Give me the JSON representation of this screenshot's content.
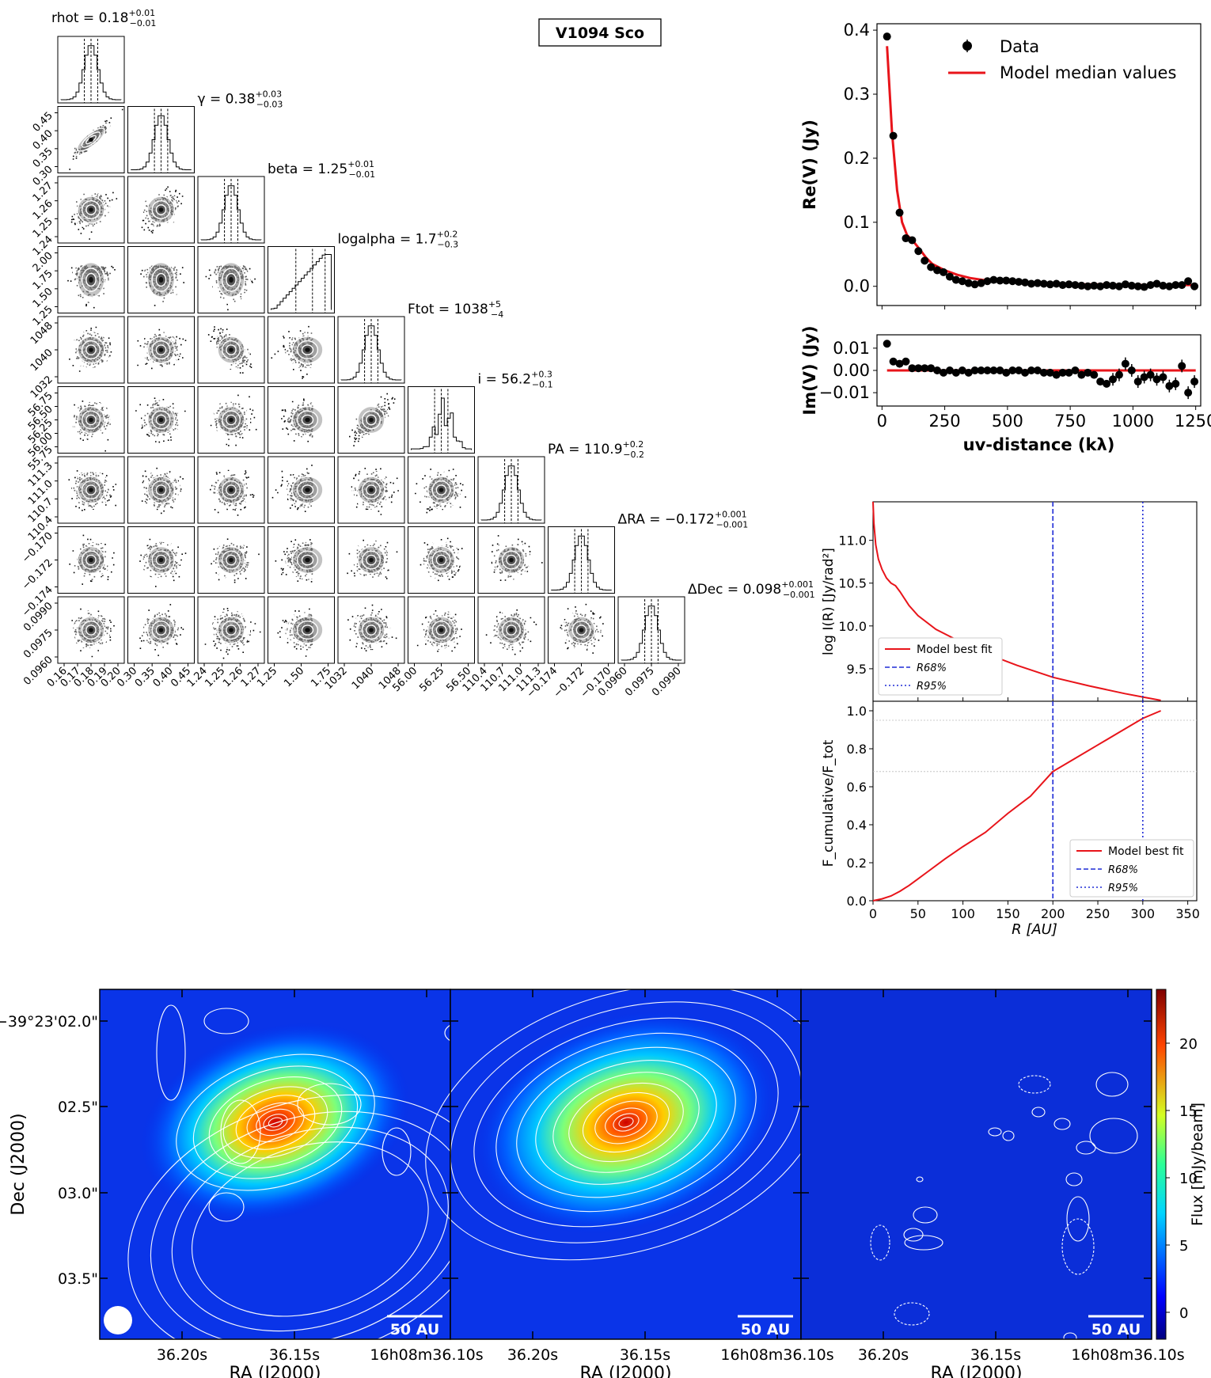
{
  "figure": {
    "object_name": "V1094  Sco",
    "colors": {
      "model": "#e8141a",
      "r68": "#1f2bd6",
      "r95": "#1f2bd6",
      "data": "#000000"
    }
  },
  "corner": {
    "params": [
      {
        "key": "rhot",
        "title": "rhot = 0.18",
        "sup": "+0.01",
        "sub": "−0.01",
        "ticks": [
          "0.16",
          "0.17",
          "0.18",
          "0.19",
          "0.20"
        ]
      },
      {
        "key": "gamma",
        "title": "γ = 0.38",
        "sup": "+0.03",
        "sub": "−0.03",
        "ticks": [
          "0.30",
          "0.35",
          "0.40",
          "0.45"
        ]
      },
      {
        "key": "beta",
        "title": "beta = 1.25",
        "sup": "+0.01",
        "sub": "−0.01",
        "ticks": [
          "1.24",
          "1.25",
          "1.26",
          "1.27"
        ]
      },
      {
        "key": "logalpha",
        "title": "logalpha = 1.7",
        "sup": "+0.2",
        "sub": "−0.3",
        "ticks": [
          "1.25",
          "1.50",
          "1.75",
          "2.00"
        ],
        "x_ticks": [
          "1.25",
          "1.50",
          "1.75"
        ]
      },
      {
        "key": "ftot",
        "title": "F_tot = 1038",
        "sup": "+5",
        "sub": "−4",
        "ticks": [
          "1032",
          "1040",
          "1048"
        ]
      },
      {
        "key": "inc",
        "title": "i = 56.2",
        "sup": "+0.3",
        "sub": "−0.1",
        "ticks": [
          "55.75",
          "56.00",
          "56.25",
          "56.50",
          "56.75"
        ],
        "x_ticks": [
          "56.00",
          "56.25",
          "56.50"
        ]
      },
      {
        "key": "pa",
        "title": "PA = 110.9",
        "sup": "+0.2",
        "sub": "−0.2",
        "ticks": [
          "110.4",
          "110.7",
          "111.0",
          "111.3"
        ]
      },
      {
        "key": "dra",
        "title": "ΔRA = −0.172",
        "sup": "+0.001",
        "sub": "−0.001",
        "ticks": [
          "−0.174",
          "−0.172",
          "−0.170"
        ]
      },
      {
        "key": "ddec",
        "title": "ΔDec = 0.098",
        "sup": "+0.001",
        "sub": "−0.001",
        "ticks": [
          "0.0960",
          "0.0975",
          "0.0990"
        ]
      }
    ]
  },
  "chart_data": [
    {
      "type": "scatter",
      "panel": "Re(V)",
      "ylabel": "Re(V) (Jy)",
      "xlim": [
        -20,
        1270
      ],
      "ylim": [
        -0.03,
        0.41
      ],
      "yticks": [
        "0.0",
        "0.1",
        "0.2",
        "0.3",
        "0.4"
      ],
      "legend": [
        "Data",
        "Model median values"
      ],
      "legend_position": "top-right",
      "data": {
        "x": [
          20,
          45,
          70,
          95,
          120,
          145,
          170,
          195,
          220,
          245,
          270,
          295,
          320,
          345,
          370,
          395,
          420,
          445,
          470,
          495,
          520,
          545,
          570,
          595,
          620,
          645,
          670,
          695,
          720,
          745,
          770,
          795,
          820,
          845,
          870,
          895,
          920,
          945,
          970,
          995,
          1020,
          1045,
          1070,
          1095,
          1120,
          1145,
          1170,
          1195,
          1220,
          1245
        ],
        "y": [
          0.39,
          0.235,
          0.115,
          0.075,
          0.072,
          0.055,
          0.04,
          0.03,
          0.025,
          0.022,
          0.015,
          0.01,
          0.008,
          0.005,
          0.003,
          0.005,
          0.008,
          0.01,
          0.009,
          0.009,
          0.008,
          0.007,
          0.006,
          0.004,
          0.005,
          0.004,
          0.003,
          0.004,
          0.002,
          0.003,
          0.002,
          0.001,
          0.0,
          0.001,
          0.0,
          0.002,
          0.001,
          0.0,
          0.003,
          0.001,
          0.0,
          -0.001,
          0.002,
          0.004,
          0.001,
          0.0,
          0.002,
          0.002,
          0.008,
          0.0
        ]
      },
      "model": {
        "x": [
          20,
          40,
          60,
          80,
          100,
          125,
          150,
          175,
          200,
          250,
          300,
          350,
          400,
          500,
          600,
          700,
          800,
          900,
          1000,
          1100,
          1200,
          1250
        ],
        "y": [
          0.375,
          0.24,
          0.15,
          0.1,
          0.08,
          0.07,
          0.058,
          0.045,
          0.035,
          0.025,
          0.018,
          0.013,
          0.01,
          0.007,
          0.005,
          0.004,
          0.003,
          0.003,
          0.002,
          0.002,
          0.002,
          0.002
        ]
      }
    },
    {
      "type": "scatter",
      "panel": "Im(V)",
      "ylabel": "Im(V) (Jy)",
      "xlabel": "uv-distance (kλ)",
      "xlim": [
        -20,
        1270
      ],
      "ylim": [
        -0.016,
        0.016
      ],
      "xticks": [
        "0",
        "250",
        "500",
        "750",
        "1000",
        "1250"
      ],
      "yticks": [
        "−0.01",
        "0.00",
        "0.01"
      ],
      "data": {
        "x": [
          20,
          45,
          70,
          95,
          120,
          145,
          170,
          195,
          220,
          245,
          270,
          295,
          320,
          345,
          370,
          395,
          420,
          445,
          470,
          495,
          520,
          545,
          570,
          595,
          620,
          645,
          670,
          695,
          720,
          745,
          770,
          795,
          820,
          845,
          870,
          895,
          920,
          945,
          970,
          995,
          1020,
          1045,
          1070,
          1095,
          1120,
          1145,
          1170,
          1195,
          1220,
          1245
        ],
        "y": [
          0.012,
          0.004,
          0.003,
          0.004,
          0.001,
          0.001,
          0.001,
          0.001,
          0.0,
          -0.001,
          0.0,
          -0.001,
          0.0,
          -0.001,
          0.0,
          0.0,
          0.0,
          0.0,
          0.0,
          -0.001,
          0.0,
          0.0,
          -0.001,
          0.0,
          0.0,
          -0.001,
          -0.001,
          -0.002,
          -0.001,
          -0.001,
          0.0,
          -0.002,
          -0.001,
          -0.002,
          -0.005,
          -0.006,
          -0.004,
          -0.002,
          0.003,
          0.0,
          -0.005,
          -0.003,
          -0.002,
          -0.004,
          -0.003,
          -0.007,
          -0.006,
          0.002,
          -0.01,
          -0.005
        ]
      },
      "model": {
        "x": [
          20,
          1250
        ],
        "y": [
          0.0,
          0.0
        ]
      }
    },
    {
      "type": "line",
      "panel": "intensity-profile",
      "ylabel": "log I(R)  [Jy/rad²]",
      "xlim": [
        0,
        360
      ],
      "ylim": [
        9.12,
        11.45
      ],
      "yticks": [
        "9.5",
        "10.0",
        "10.5",
        "11.0"
      ],
      "legend": [
        "Model best fit",
        "R68%",
        "R95%"
      ],
      "legend_position": "lower-left",
      "series": [
        {
          "name": "Model best fit",
          "x": [
            0,
            1,
            3,
            6,
            10,
            15,
            20,
            25,
            30,
            40,
            50,
            70,
            100,
            130,
            160,
            200,
            240,
            280,
            300,
            320
          ],
          "y": [
            11.5,
            11.2,
            10.95,
            10.78,
            10.66,
            10.56,
            10.5,
            10.47,
            10.4,
            10.24,
            10.12,
            9.96,
            9.8,
            9.66,
            9.54,
            9.4,
            9.3,
            9.21,
            9.17,
            9.13
          ]
        }
      ],
      "vlines": {
        "R68%": 200,
        "R95%": 300
      }
    },
    {
      "type": "line",
      "panel": "cumulative-flux",
      "ylabel": "F_cumulative/F_tot",
      "xlabel": "R [AU]",
      "xlim": [
        0,
        360
      ],
      "ylim": [
        0,
        1.05
      ],
      "xticks": [
        "0",
        "50",
        "100",
        "150",
        "200",
        "250",
        "300",
        "350"
      ],
      "yticks": [
        "0.0",
        "0.2",
        "0.4",
        "0.6",
        "0.8",
        "1.0"
      ],
      "legend": [
        "Model best fit",
        "R68%",
        "R95%"
      ],
      "legend_position": "lower-right",
      "series": [
        {
          "name": "Model best fit",
          "x": [
            0,
            10,
            20,
            30,
            40,
            50,
            60,
            80,
            100,
            125,
            150,
            175,
            200,
            225,
            250,
            275,
            300,
            320
          ],
          "y": [
            0,
            0.01,
            0.025,
            0.05,
            0.08,
            0.115,
            0.15,
            0.22,
            0.285,
            0.36,
            0.46,
            0.55,
            0.68,
            0.75,
            0.82,
            0.89,
            0.96,
            1.0
          ]
        }
      ],
      "hlines": [
        0.68,
        0.95
      ],
      "vlines": {
        "R68%": 200,
        "R95%": 300
      }
    },
    {
      "type": "heatmap",
      "panel": "images",
      "panels": [
        "data",
        "model",
        "residual"
      ],
      "xlabel": "RA (J2000)",
      "ylabel": "Dec (J2000)",
      "xticks": [
        "36.20s",
        "36.15s",
        "16h08m36.10s"
      ],
      "yticks": [
        "−39°23'02.0\"",
        "02.5\"",
        "03.0\"",
        "03.5\""
      ],
      "scalebar": "50 AU",
      "colorbar": {
        "label": "Flux [mJy/beam]",
        "ticks": [
          "0",
          "5",
          "10",
          "15",
          "20"
        ],
        "range": [
          -2,
          24
        ]
      }
    }
  ]
}
